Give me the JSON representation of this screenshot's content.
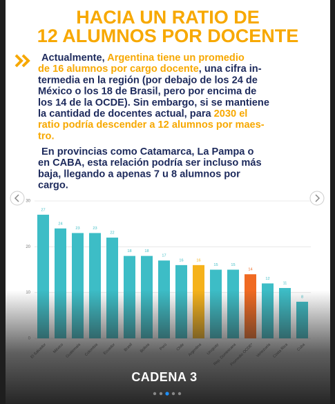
{
  "header": {
    "title_lines": [
      "HACIA UN RATIO DE",
      "12 ALUMNOS POR DOCENTE"
    ]
  },
  "paragraphs": [
    [
      [
        {
          "text": "Actualmente, ",
          "color": "#1d2a5c"
        },
        {
          "text": "Argentina tiene un promedio",
          "color": "#f7a800"
        }
      ],
      [
        {
          "text": "de 16 alumnos por cargo docente",
          "color": "#f7a800"
        },
        {
          "text": ", una cifra in-",
          "color": "#1d2a5c"
        }
      ],
      [
        {
          "text": "termedia en la región (por debajo de los 24 de",
          "color": "#1d2a5c"
        }
      ],
      [
        {
          "text": "México o los 18 de Brasil, pero por encima de",
          "color": "#1d2a5c"
        }
      ],
      [
        {
          "text": "los 14 de la OCDE). Sin embargo, si se mantiene",
          "color": "#1d2a5c"
        }
      ],
      [
        {
          "text": "la cantidad de docentes actual, para ",
          "color": "#1d2a5c"
        },
        {
          "text": "2030 el",
          "color": "#f7a800"
        }
      ],
      [
        {
          "text": "ratio podría descender a 12 alumnos por maes-",
          "color": "#f7a800"
        }
      ],
      [
        {
          "text": "tro.",
          "color": "#f7a800"
        }
      ]
    ],
    [
      [
        {
          "text": "En provincias como Catamarca, La Pampa o",
          "color": "#1d2a5c"
        }
      ],
      [
        {
          "text": "en CABA, esta relación podría ser incluso más",
          "color": "#1d2a5c"
        }
      ],
      [
        {
          "text": "baja, llegando a apenas 7 u 8 alumnos por",
          "color": "#1d2a5c"
        }
      ],
      [
        {
          "text": "cargo.",
          "color": "#1d2a5c"
        }
      ]
    ]
  ],
  "chart_data": {
    "type": "bar",
    "categories": [
      "El Salvador",
      "México",
      "Guatemala",
      "Colombia",
      "Ecuador",
      "Brasil",
      "Bolivia",
      "Perú",
      "Chile",
      "Argentina",
      "Uruguay",
      "Rep. Dominicana",
      "Promedio OCDE*",
      "Venezuela",
      "Costa Rica",
      "Cuba"
    ],
    "values": [
      27,
      24,
      23,
      23,
      22,
      18,
      18,
      17,
      16,
      16,
      15,
      15,
      14,
      12,
      11,
      8
    ],
    "colors": [
      "#3dbdc6",
      "#3dbdc6",
      "#3dbdc6",
      "#3dbdc6",
      "#3dbdc6",
      "#3dbdc6",
      "#3dbdc6",
      "#3dbdc6",
      "#3dbdc6",
      "#f5b21b",
      "#3dbdc6",
      "#3dbdc6",
      "#f06a22",
      "#3dbdc6",
      "#3dbdc6",
      "#3dbdc6"
    ],
    "ylim": [
      0,
      30
    ],
    "yticks": [
      0,
      10,
      20,
      30
    ],
    "grid": true
  },
  "footer": {
    "brand": "CADENA 3"
  }
}
